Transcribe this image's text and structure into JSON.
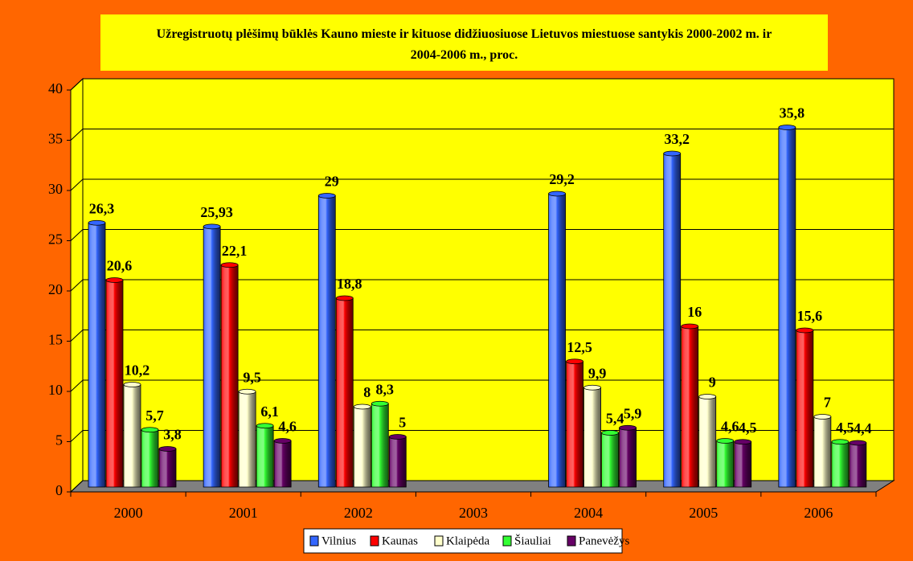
{
  "chart_data": {
    "type": "bar",
    "title": "Užregistruotų plėšimų būklės Kauno mieste ir kituose didžiuosiuose Lietuvos miestuose santykis 2000-2002 m. ir 2004-2006 m., proc.",
    "categories": [
      "2000",
      "2001",
      "2002",
      "2003",
      "2004",
      "2005",
      "2006"
    ],
    "series": [
      {
        "name": "Vilnius",
        "color": "#3366ff",
        "values": [
          26.3,
          25.93,
          29,
          null,
          29.2,
          33.2,
          35.8
        ],
        "value_labels": [
          "26,3",
          "25,93",
          "29",
          null,
          "29,2",
          "33,2",
          "35,8"
        ]
      },
      {
        "name": "Kaunas",
        "color": "#ff0000",
        "values": [
          20.6,
          22.1,
          18.8,
          null,
          12.5,
          16,
          15.6
        ],
        "value_labels": [
          "20,6",
          "22,1",
          "18,8",
          null,
          "12,5",
          "16",
          "15,6"
        ]
      },
      {
        "name": "Klaipėda",
        "color": "#ffffcc",
        "values": [
          10.2,
          9.5,
          8,
          null,
          9.9,
          9,
          7
        ],
        "value_labels": [
          "10,2",
          "9,5",
          "8",
          null,
          "9,9",
          "9",
          "7"
        ]
      },
      {
        "name": "Šiauliai",
        "color": "#33ff33",
        "values": [
          5.7,
          6.1,
          8.3,
          null,
          5.4,
          4.6,
          4.5
        ],
        "value_labels": [
          "5,7",
          "6,1",
          "8,3",
          null,
          "5,4",
          "4,6",
          "4,5"
        ]
      },
      {
        "name": "Panevėžys",
        "color": "#660066",
        "values": [
          3.8,
          4.6,
          5,
          null,
          5.9,
          4.5,
          4.4
        ],
        "value_labels": [
          "3,8",
          "4,6",
          "5",
          null,
          "5,9",
          "4,5",
          "4,4"
        ]
      }
    ],
    "ylim": [
      0,
      40
    ],
    "yticks": [
      0,
      5,
      10,
      15,
      20,
      25,
      30,
      35,
      40
    ],
    "grid": true,
    "legend": "bottom"
  }
}
